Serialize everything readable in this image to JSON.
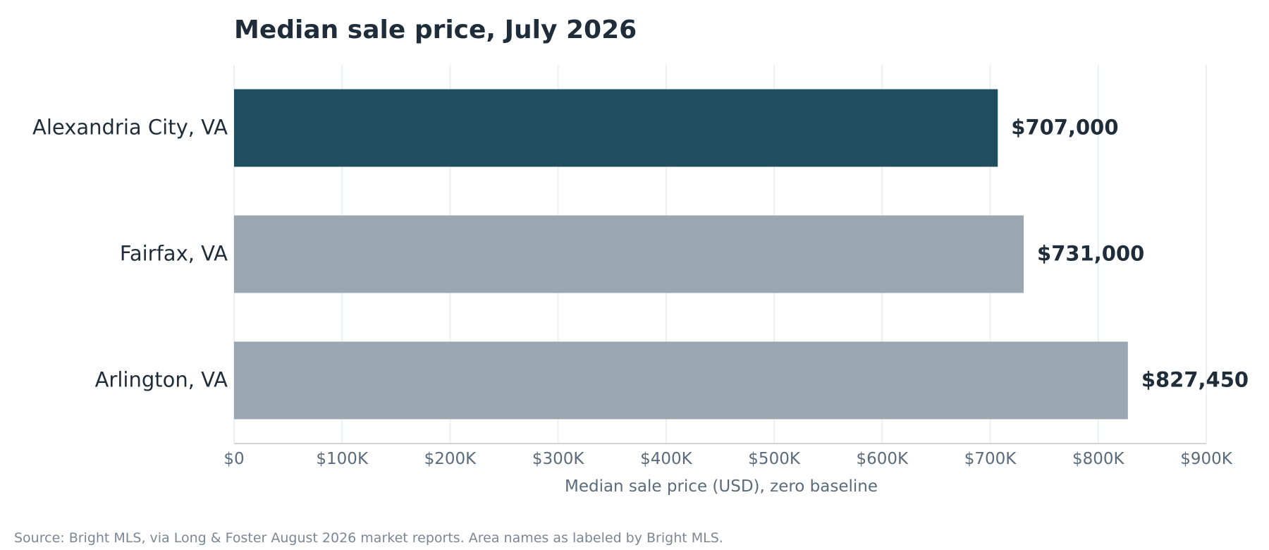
{
  "chart_data": {
    "type": "bar",
    "orientation": "horizontal",
    "title": "Median sale price, July 2026",
    "categories": [
      "Alexandria City, VA",
      "Fairfax, VA",
      "Arlington, VA"
    ],
    "values": [
      707000,
      731000,
      827450
    ],
    "value_labels": [
      "$707,000",
      "$731,000",
      "$827,450"
    ],
    "highlight_index": 0,
    "xlabel": "Median sale price (USD), zero baseline",
    "ylabel": "",
    "xlim": [
      0,
      900000
    ],
    "xticks": [
      0,
      100000,
      200000,
      300000,
      400000,
      500000,
      600000,
      700000,
      800000,
      900000
    ],
    "xtick_labels": [
      "$0",
      "$100K",
      "$200K",
      "$300K",
      "$400K",
      "$500K",
      "$600K",
      "$700K",
      "$800K",
      "$900K"
    ],
    "grid": "vertical",
    "legend": "none",
    "source": "Source: Bright MLS, via Long & Foster August 2026 market reports. Area names as labeled by Bright MLS."
  },
  "colors": {
    "highlight_bar": "#1f4e5f",
    "default_bar": "#9aa7b0",
    "text_dark": "#1f2d3a",
    "text_axis": "#5a6b7b",
    "text_source": "#7b8794",
    "grid": "#edf0f2",
    "axis_line": "#d0d5da"
  }
}
